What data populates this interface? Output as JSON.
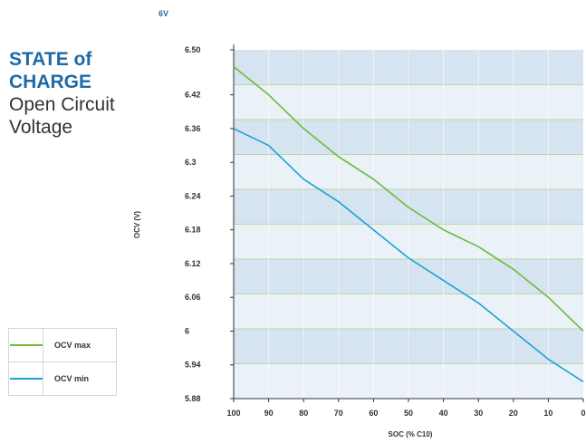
{
  "header": {
    "voltage_tag": "6V",
    "title_line1": "STATE of",
    "title_line2": "CHARGE",
    "subtitle_line1": "Open Circuit",
    "subtitle_line2": "Voltage"
  },
  "colors": {
    "accent": "#1f6aa5",
    "ocv_max": "#6cbb3c",
    "ocv_min": "#1aa3d2",
    "band_dark": "#d5e4f0",
    "band_light": "#eaf1f7",
    "band_border": "#b9d6a3"
  },
  "chart_data": {
    "type": "line",
    "xlabel": "SOC (% C10)",
    "ylabel": "OCV (V)",
    "x": [
      100,
      90,
      80,
      70,
      60,
      50,
      40,
      30,
      20,
      10,
      0
    ],
    "x_tick_labels": [
      "100",
      "90",
      "80",
      "70",
      "60",
      "50",
      "40",
      "30",
      "20",
      "10",
      "0"
    ],
    "y_ticks": [
      6.5,
      6.42,
      6.36,
      6.3,
      6.24,
      6.18,
      6.12,
      6.06,
      6.0,
      5.94,
      5.88
    ],
    "y_tick_labels": [
      "6.50",
      "6.42",
      "6.36",
      "6.3",
      "6.24",
      "6.18",
      "6.12",
      "6.06",
      "6",
      "5.94",
      "5.88"
    ],
    "ylim": [
      5.88,
      6.5
    ],
    "grid": "horizontal bands",
    "series": [
      {
        "name": "OCV max",
        "color": "#6cbb3c",
        "values": [
          6.47,
          6.42,
          6.36,
          6.31,
          6.27,
          6.22,
          6.18,
          6.15,
          6.11,
          6.06,
          6.0
        ]
      },
      {
        "name": "OCV min",
        "color": "#1aa3d2",
        "values": [
          6.36,
          6.33,
          6.27,
          6.23,
          6.18,
          6.13,
          6.09,
          6.05,
          6.0,
          5.95,
          5.91
        ]
      }
    ]
  }
}
